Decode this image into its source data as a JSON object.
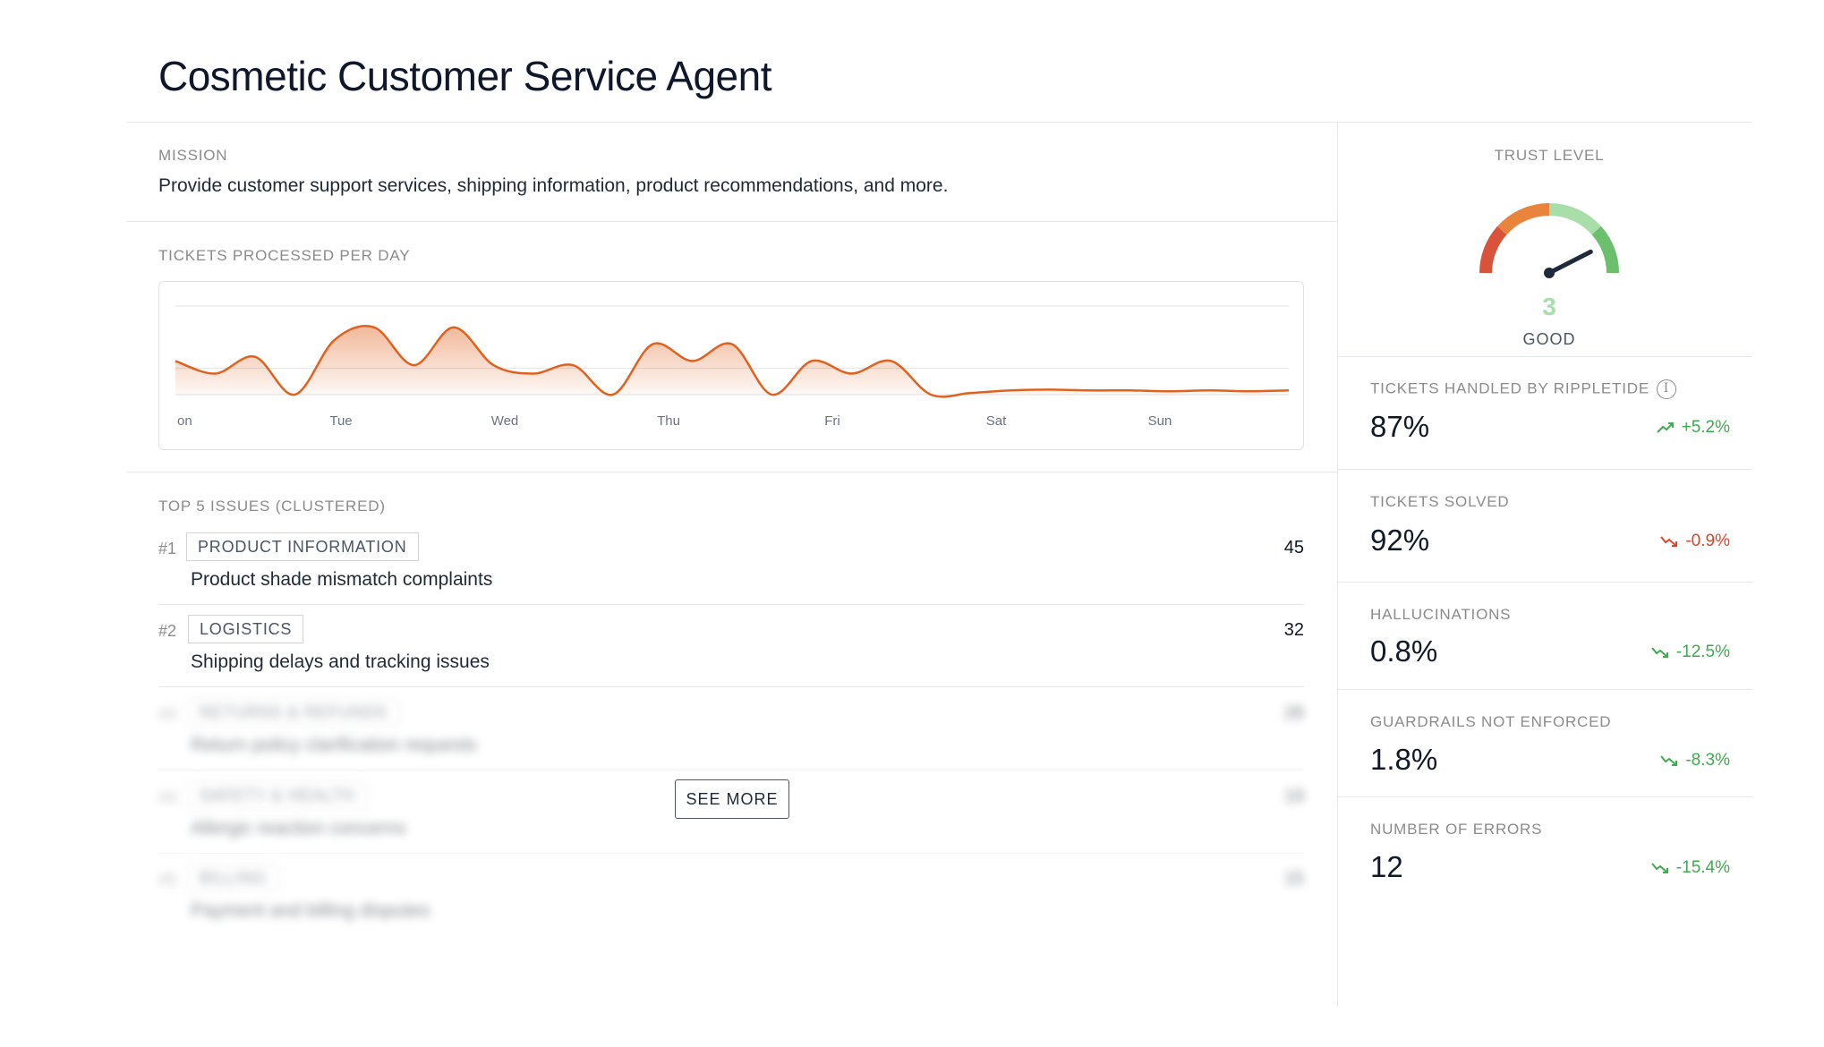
{
  "page_title": "Cosmetic Customer Service Agent",
  "mission": {
    "label": "MISSION",
    "text": "Provide customer support services, shipping information, product recommendations, and more."
  },
  "chart_section": {
    "label": "TICKETS PROCESSED PER DAY"
  },
  "chart_data": {
    "type": "area",
    "title": "TICKETS PROCESSED PER DAY",
    "x_tick_labels": [
      "on",
      "Tue",
      "Wed",
      "Thu",
      "Fri",
      "Sat",
      "Sun"
    ],
    "y_relative_0_to_1": [
      0.4,
      0.25,
      0.45,
      0.0,
      0.65,
      0.8,
      0.35,
      0.8,
      0.35,
      0.25,
      0.35,
      0.0,
      0.6,
      0.4,
      0.6,
      0.0,
      0.4,
      0.25,
      0.4,
      0.0,
      0.02,
      0.05,
      0.06,
      0.05,
      0.05,
      0.04,
      0.05,
      0.04,
      0.05
    ],
    "grid": true,
    "color": "#e0621f"
  },
  "issues": {
    "label": "TOP 5 ISSUES (CLUSTERED)",
    "items": [
      {
        "rank": "#1",
        "tag": "PRODUCT INFORMATION",
        "description": "Product shade mismatch complaints",
        "count": "45"
      },
      {
        "rank": "#2",
        "tag": "LOGISTICS",
        "description": "Shipping delays and tracking issues",
        "count": "32"
      },
      {
        "rank": "#3",
        "tag": "RETURNS & REFUNDS",
        "description": "Return policy clarification requests",
        "count": "28"
      },
      {
        "rank": "#4",
        "tag": "SAFETY & HEALTH",
        "description": "Allergic reaction concerns",
        "count": "19"
      },
      {
        "rank": "#5",
        "tag": "BILLING",
        "description": "Payment and billing disputes",
        "count": "15"
      }
    ],
    "see_more_label": "SEE MORE"
  },
  "trust": {
    "label": "TRUST LEVEL",
    "value": "3",
    "word": "GOOD",
    "level_fraction": 0.85,
    "colors": [
      "#d9533b",
      "#e8843c",
      "#a8dfa9",
      "#6cbf6c"
    ]
  },
  "metrics": [
    {
      "label": "TICKETS HANDLED BY RIPPLETIDE",
      "value": "87%",
      "change": "+5.2%",
      "direction": "up",
      "info_icon": true
    },
    {
      "label": "TICKETS SOLVED",
      "value": "92%",
      "change": "-0.9%",
      "direction": "down-bad",
      "info_icon": false
    },
    {
      "label": "HALLUCINATIONS",
      "value": "0.8%",
      "change": "-12.5%",
      "direction": "down-good",
      "info_icon": false
    },
    {
      "label": "GUARDRAILS NOT ENFORCED",
      "value": "1.8%",
      "change": "-8.3%",
      "direction": "down-good",
      "info_icon": false
    },
    {
      "label": "NUMBER OF ERRORS",
      "value": "12",
      "change": "-15.4%",
      "direction": "down-good",
      "info_icon": false
    }
  ],
  "colors": {
    "accent": "#e0621f",
    "good": "#3faa4e",
    "bad": "#d9462a"
  }
}
